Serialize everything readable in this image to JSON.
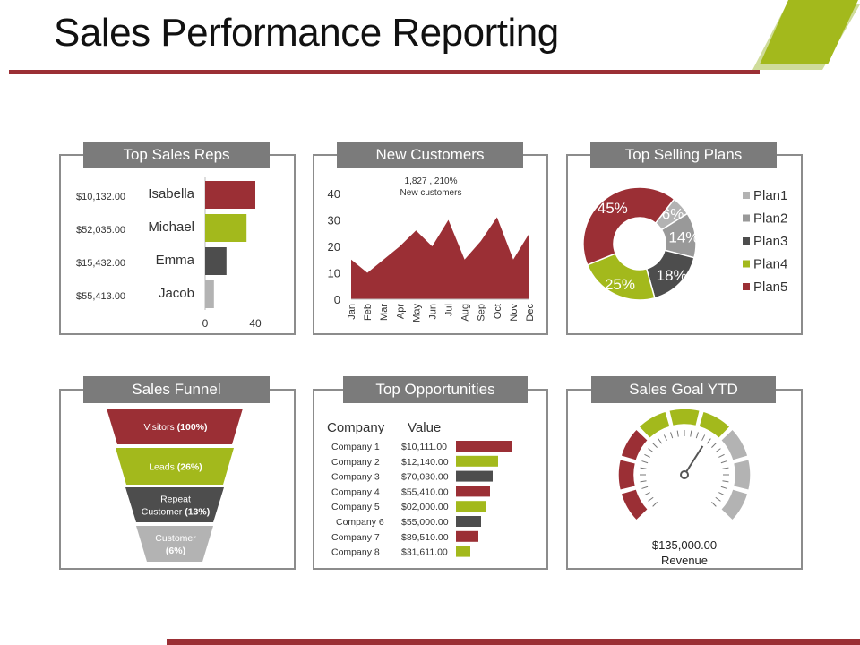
{
  "title": "Sales Performance Reporting",
  "colors": {
    "red": "#9b2f35",
    "green": "#a3b91c",
    "dark": "#4d4d4d",
    "light": "#b3b3b3",
    "mid": "#999999",
    "rule": "#9b2f35",
    "tab": "#7b7b7b"
  },
  "panels": {
    "top_sales_reps": "Top Sales Reps",
    "new_customers": "New Customers",
    "top_selling_plans": "Top Selling Plans",
    "sales_funnel": "Sales Funnel",
    "top_opportunities": "Top Opportunities",
    "sales_goal": "Sales Goal YTD"
  },
  "chart_data": [
    {
      "id": "reps",
      "type": "bar",
      "orientation": "horizontal",
      "categories": [
        "Isabella",
        "Michael",
        "Emma",
        "Jacob"
      ],
      "amounts": [
        "$10,132.00",
        "$52,035.00",
        "$15,432.00",
        "$55,413.00"
      ],
      "values": [
        40,
        33,
        17,
        7
      ],
      "colors": [
        "#9b2f35",
        "#a3b91c",
        "#4d4d4d",
        "#b3b3b3"
      ],
      "xticks": [
        "0",
        "40",
        "80",
        "120"
      ],
      "xlim": [
        0,
        120
      ]
    },
    {
      "id": "customers",
      "type": "area",
      "categories": [
        "Jan",
        "Feb",
        "Mar",
        "Apr",
        "May",
        "Jun",
        "Jul",
        "Aug",
        "Sep",
        "Oct",
        "Nov",
        "Dec"
      ],
      "values": [
        15,
        10,
        15,
        20,
        26,
        20,
        30,
        15,
        22,
        31,
        15,
        25
      ],
      "ylim": [
        0,
        40
      ],
      "yticks": [
        "0",
        "10",
        "20",
        "30",
        "40"
      ],
      "annotation": [
        "1,827 , 210%",
        "New customers"
      ],
      "color": "#9b2f35"
    },
    {
      "id": "plans",
      "type": "pie",
      "labels": [
        "Plan1",
        "Plan2",
        "Plan3",
        "Plan4",
        "Plan5"
      ],
      "values": [
        6,
        14,
        18,
        25,
        45
      ],
      "value_labels": [
        "6%",
        "14%",
        "18%",
        "25%",
        "45%"
      ],
      "colors": [
        "#b3b3b3",
        "#999999",
        "#4d4d4d",
        "#a3b91c",
        "#9b2f35"
      ],
      "legend": "right"
    },
    {
      "id": "funnel",
      "type": "bar",
      "orientation": "funnel",
      "stages": [
        {
          "name": "Visitors",
          "pct": "(100%)"
        },
        {
          "name": "Leads",
          "pct": "(26%)"
        },
        {
          "name": "Repeat Customer",
          "pct": "(13%)"
        },
        {
          "name": "Customer",
          "pct": "(6%)"
        }
      ],
      "values": [
        100,
        26,
        13,
        6
      ],
      "colors": [
        "#9b2f35",
        "#a3b91c",
        "#4d4d4d",
        "#b3b3b3"
      ]
    },
    {
      "id": "opps",
      "type": "table",
      "headers": [
        "Company",
        "Value"
      ],
      "rows": [
        {
          "company": "Company 1",
          "value": "$10,111.00",
          "bar": 62,
          "color": "#9b2f35"
        },
        {
          "company": "Company 2",
          "value": "$12,140.00",
          "bar": 47,
          "color": "#a3b91c"
        },
        {
          "company": "Company 3",
          "value": "$70,030.00",
          "bar": 41,
          "color": "#4d4d4d"
        },
        {
          "company": "Company 4",
          "value": "$55,410.00",
          "bar": 38,
          "color": "#9b2f35"
        },
        {
          "company": "Company 5",
          "value": "$02,000.00",
          "bar": 34,
          "color": "#a3b91c"
        },
        {
          "company": "Company 6",
          "value": "$55,000.00",
          "bar": 28,
          "color": "#4d4d4d"
        },
        {
          "company": "Company 7",
          "value": "$89,510.00",
          "bar": 25,
          "color": "#9b2f35"
        },
        {
          "company": "Company 8",
          "value": "$31,611.00",
          "bar": 16,
          "color": "#a3b91c"
        }
      ]
    },
    {
      "id": "gauge",
      "type": "pie",
      "segments": [
        "#9b2f35",
        "#9b2f35",
        "#9b2f35",
        "#a3b91c",
        "#a3b91c",
        "#a3b91c",
        "#b3b3b3",
        "#b3b3b3",
        "#b3b3b3"
      ],
      "needle_fraction": 0.62,
      "value": "$135,000.00",
      "label": "Revenue"
    }
  ]
}
